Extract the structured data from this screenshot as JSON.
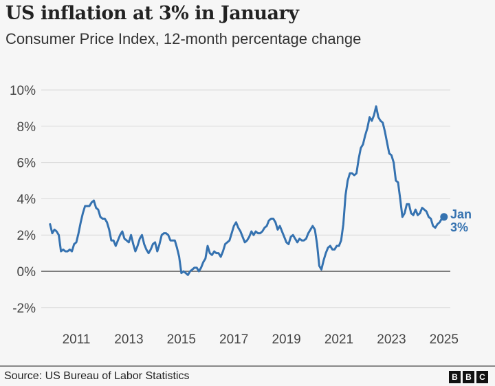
{
  "header": {
    "title": "US inflation at 3% in January",
    "subtitle": "Consumer Price Index, 12-month percentage change"
  },
  "footer": {
    "source": "Source: US Bureau of Labor Statistics",
    "logo": "BBC"
  },
  "colors": {
    "line": "#3572b0",
    "background": "#f6f6f6",
    "grid": "#d8d8d8",
    "zero_line": "#555555"
  },
  "chart_data": {
    "type": "line",
    "title": "US inflation at 3% in January",
    "subtitle": "Consumer Price Index, 12-month percentage change",
    "xlabel": "",
    "ylabel": "",
    "ylim": [
      -2,
      10
    ],
    "xlim": [
      "2010-01",
      "2025-01"
    ],
    "grid": true,
    "yticks": [
      -2,
      0,
      2,
      4,
      6,
      8,
      10
    ],
    "ytick_labels": [
      "-2%",
      "0%",
      "2%",
      "4%",
      "6%",
      "8%",
      "10%"
    ],
    "xtick_labels": [
      "2011",
      "2013",
      "2015",
      "2017",
      "2019",
      "2021",
      "2023",
      "2025"
    ],
    "annotation": {
      "line1": "Jan",
      "line2": "3%"
    },
    "start": "2010-01",
    "frequency": "monthly",
    "values": [
      2.6,
      2.1,
      2.3,
      2.2,
      2.0,
      1.1,
      1.2,
      1.1,
      1.1,
      1.2,
      1.1,
      1.5,
      1.6,
      2.1,
      2.7,
      3.2,
      3.6,
      3.6,
      3.6,
      3.8,
      3.9,
      3.5,
      3.4,
      3.0,
      2.9,
      2.9,
      2.7,
      2.3,
      1.7,
      1.7,
      1.4,
      1.7,
      2.0,
      2.2,
      1.8,
      1.7,
      1.6,
      2.0,
      1.5,
      1.1,
      1.4,
      1.8,
      2.0,
      1.5,
      1.2,
      1.0,
      1.2,
      1.5,
      1.6,
      1.1,
      1.5,
      2.0,
      2.1,
      2.1,
      2.0,
      1.7,
      1.7,
      1.7,
      1.3,
      0.8,
      -0.1,
      0.0,
      -0.1,
      -0.2,
      0.0,
      0.1,
      0.2,
      0.2,
      0.0,
      0.2,
      0.5,
      0.7,
      1.4,
      1.0,
      0.9,
      1.1,
      1.0,
      1.0,
      0.8,
      1.1,
      1.5,
      1.6,
      1.7,
      2.1,
      2.5,
      2.7,
      2.4,
      2.2,
      1.9,
      1.6,
      1.7,
      1.9,
      2.2,
      2.0,
      2.2,
      2.1,
      2.1,
      2.2,
      2.4,
      2.5,
      2.8,
      2.9,
      2.9,
      2.7,
      2.3,
      2.5,
      2.2,
      1.9,
      1.6,
      1.5,
      1.9,
      2.0,
      1.8,
      1.6,
      1.8,
      1.7,
      1.7,
      1.8,
      2.1,
      2.3,
      2.5,
      2.3,
      1.5,
      0.3,
      0.1,
      0.6,
      1.0,
      1.3,
      1.4,
      1.2,
      1.2,
      1.4,
      1.4,
      1.7,
      2.6,
      4.2,
      5.0,
      5.4,
      5.4,
      5.3,
      5.4,
      6.2,
      6.8,
      7.0,
      7.5,
      7.9,
      8.5,
      8.3,
      8.6,
      9.1,
      8.5,
      8.3,
      8.2,
      7.7,
      7.1,
      6.5,
      6.4,
      6.0,
      5.0,
      4.9,
      4.0,
      3.0,
      3.2,
      3.7,
      3.7,
      3.2,
      3.1,
      3.4,
      3.1,
      3.2,
      3.5,
      3.4,
      3.3,
      3.0,
      2.9,
      2.5,
      2.4,
      2.6,
      2.7,
      2.9,
      3.0
    ]
  }
}
